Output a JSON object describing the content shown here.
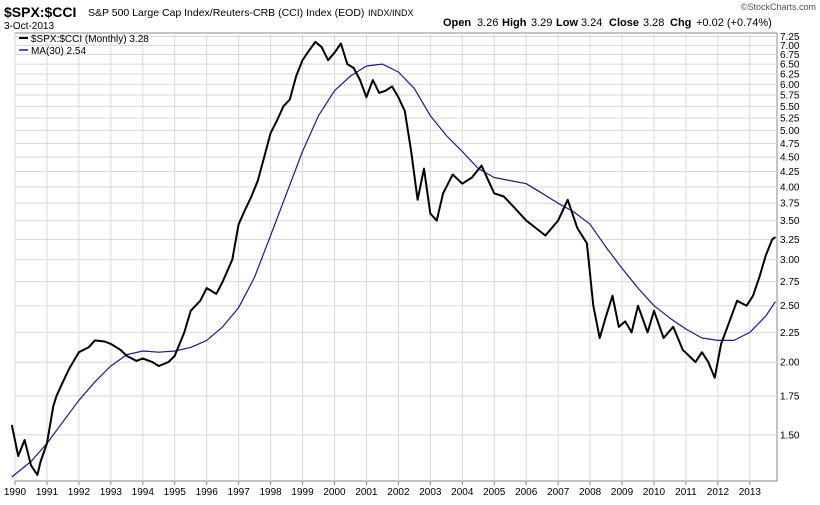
{
  "header": {
    "symbol": "$SPX:$CCI",
    "description": "S&P 500 Large Cap Index/Reuters-CRB (CCI) Index (EOD)",
    "exchange": "INDX/INDX",
    "date": "3-Oct-2013",
    "watermark": "©StockCharts.com",
    "ohlc": {
      "open_label": "Open",
      "open": "3.26",
      "high_label": "High",
      "high": "3.29",
      "low_label": "Low",
      "low": "3.24",
      "close_label": "Close",
      "close": "3.28",
      "chg_label": "Chg",
      "chg": "+0.02 (+0.74%)"
    }
  },
  "legend": [
    {
      "label": "$SPX:$CCI (Monthly) 3.28",
      "color": "#000000"
    },
    {
      "label": "MA(30) 2.54",
      "color": "#1a1a8c"
    }
  ],
  "chart_data": {
    "type": "line",
    "x_tick_labels": [
      "1990",
      "1991",
      "1992",
      "1993",
      "1994",
      "1995",
      "1996",
      "1997",
      "1998",
      "1999",
      "2000",
      "2001",
      "2002",
      "2003",
      "2004",
      "2005",
      "2006",
      "2007",
      "2008",
      "2009",
      "2010",
      "2011",
      "2012",
      "2013"
    ],
    "y_tick_labels": [
      "1.50",
      "1.75",
      "2.00",
      "2.25",
      "2.50",
      "2.75",
      "3.00",
      "3.25",
      "3.50",
      "3.75",
      "4.00",
      "4.25",
      "4.50",
      "4.75",
      "5.00",
      "5.25",
      "5.50",
      "5.75",
      "6.00",
      "6.25",
      "6.50",
      "6.75",
      "7.00",
      "7.25"
    ],
    "y_ticks": [
      1.5,
      1.75,
      2.0,
      2.25,
      2.5,
      2.75,
      3.0,
      3.25,
      3.5,
      3.75,
      4.0,
      4.25,
      4.5,
      4.75,
      5.0,
      5.25,
      5.5,
      5.75,
      6.0,
      6.25,
      6.5,
      6.75,
      7.0,
      7.25
    ],
    "xlim": [
      1990.0,
      2013.85
    ],
    "ylim": [
      1.25,
      7.35
    ],
    "y_scale": "log",
    "grid": true,
    "legend_position": "top-left",
    "series": [
      {
        "name": "$SPX:$CCI (Monthly)",
        "color": "#000000",
        "x": [
          1989.9,
          1990.1,
          1990.3,
          1990.5,
          1990.7,
          1990.8,
          1991.0,
          1991.2,
          1991.3,
          1991.5,
          1991.7,
          1992.0,
          1992.3,
          1992.5,
          1992.8,
          1993.0,
          1993.3,
          1993.5,
          1993.8,
          1994.0,
          1994.3,
          1994.5,
          1994.8,
          1995.0,
          1995.3,
          1995.5,
          1995.8,
          1996.0,
          1996.3,
          1996.5,
          1996.8,
          1997.0,
          1997.2,
          1997.4,
          1997.6,
          1997.8,
          1998.0,
          1998.2,
          1998.4,
          1998.6,
          1998.8,
          1999.0,
          1999.2,
          1999.4,
          1999.6,
          1999.8,
          2000.0,
          2000.2,
          2000.4,
          2000.6,
          2000.8,
          2001.0,
          2001.2,
          2001.4,
          2001.6,
          2001.8,
          2002.0,
          2002.2,
          2002.4,
          2002.6,
          2002.8,
          2003.0,
          2003.2,
          2003.4,
          2003.7,
          2004.0,
          2004.3,
          2004.6,
          2005.0,
          2005.3,
          2005.6,
          2006.0,
          2006.3,
          2006.6,
          2007.0,
          2007.3,
          2007.6,
          2007.9,
          2008.1,
          2008.3,
          2008.5,
          2008.7,
          2008.9,
          2009.1,
          2009.3,
          2009.5,
          2009.8,
          2010.0,
          2010.3,
          2010.6,
          2010.9,
          2011.1,
          2011.3,
          2011.5,
          2011.7,
          2011.9,
          2012.1,
          2012.3,
          2012.6,
          2012.9,
          2013.1,
          2013.3,
          2013.5,
          2013.7,
          2013.8
        ],
        "y": [
          1.56,
          1.38,
          1.47,
          1.33,
          1.28,
          1.35,
          1.45,
          1.68,
          1.75,
          1.85,
          1.95,
          2.08,
          2.12,
          2.18,
          2.17,
          2.15,
          2.1,
          2.05,
          2.01,
          2.03,
          2.0,
          1.97,
          2.0,
          2.05,
          2.25,
          2.45,
          2.55,
          2.68,
          2.62,
          2.75,
          3.0,
          3.45,
          3.65,
          3.85,
          4.1,
          4.5,
          4.95,
          5.2,
          5.5,
          5.65,
          6.2,
          6.6,
          6.85,
          7.1,
          6.95,
          6.6,
          6.8,
          7.05,
          6.5,
          6.4,
          6.1,
          5.7,
          6.1,
          5.8,
          5.85,
          5.95,
          5.7,
          5.4,
          4.6,
          3.8,
          4.3,
          3.6,
          3.5,
          3.9,
          4.2,
          4.05,
          4.15,
          4.35,
          3.9,
          3.85,
          3.7,
          3.5,
          3.4,
          3.3,
          3.5,
          3.8,
          3.4,
          3.2,
          2.5,
          2.2,
          2.4,
          2.6,
          2.3,
          2.35,
          2.25,
          2.5,
          2.25,
          2.45,
          2.2,
          2.3,
          2.1,
          2.05,
          2.0,
          2.08,
          2.0,
          1.88,
          2.15,
          2.3,
          2.55,
          2.5,
          2.6,
          2.8,
          3.05,
          3.25,
          3.28
        ]
      },
      {
        "name": "MA(30)",
        "color": "#1a1a8c",
        "x": [
          1989.9,
          1990.5,
          1991.0,
          1991.5,
          1992.0,
          1992.5,
          1993.0,
          1993.5,
          1994.0,
          1994.5,
          1995.0,
          1995.5,
          1996.0,
          1996.5,
          1997.0,
          1997.5,
          1998.0,
          1998.5,
          1999.0,
          1999.5,
          2000.0,
          2000.5,
          2001.0,
          2001.5,
          2002.0,
          2002.5,
          2003.0,
          2003.5,
          2004.0,
          2004.5,
          2005.0,
          2005.5,
          2006.0,
          2006.5,
          2007.0,
          2007.5,
          2008.0,
          2008.5,
          2009.0,
          2009.5,
          2010.0,
          2010.5,
          2011.0,
          2011.5,
          2012.0,
          2012.5,
          2013.0,
          2013.5,
          2013.8
        ],
        "y": [
          1.27,
          1.35,
          1.45,
          1.58,
          1.72,
          1.85,
          1.97,
          2.06,
          2.09,
          2.08,
          2.09,
          2.12,
          2.18,
          2.3,
          2.48,
          2.8,
          3.3,
          3.9,
          4.6,
          5.3,
          5.85,
          6.2,
          6.45,
          6.5,
          6.3,
          5.9,
          5.3,
          4.9,
          4.6,
          4.3,
          4.15,
          4.1,
          4.05,
          3.9,
          3.75,
          3.62,
          3.45,
          3.15,
          2.9,
          2.68,
          2.5,
          2.38,
          2.28,
          2.2,
          2.18,
          2.18,
          2.25,
          2.4,
          2.54
        ]
      }
    ]
  }
}
